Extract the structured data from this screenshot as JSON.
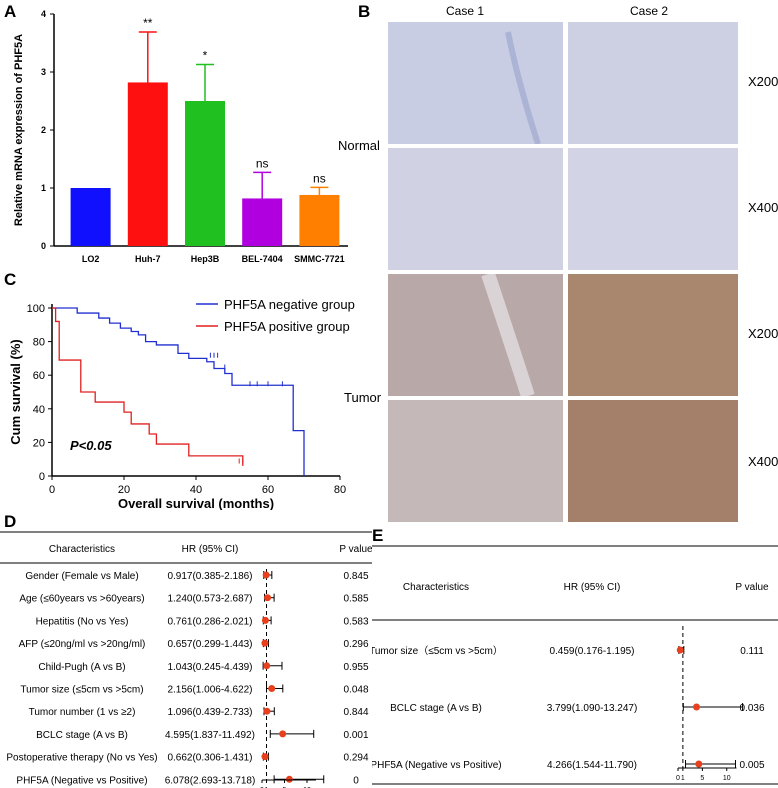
{
  "panels": {
    "a": "A",
    "b": "B",
    "c": "C",
    "d": "D",
    "e": "E"
  },
  "panel_a": {
    "chart_data": {
      "type": "bar",
      "categories": [
        "LO2",
        "Huh-7",
        "Hep3B",
        "BEL-7404",
        "SMMC-7721"
      ],
      "values": [
        1.0,
        2.82,
        2.5,
        0.82,
        0.88
      ],
      "errors": [
        0,
        0.87,
        0.63,
        0.45,
        0.13
      ],
      "colors": [
        "#1010ff",
        "#ff1010",
        "#20c020",
        "#b000e0",
        "#ff8000"
      ],
      "significance": [
        "",
        "**",
        "*",
        "ns",
        "ns"
      ],
      "ylabel": "Relative  mRNA expression of PHF5A",
      "ylim": [
        0,
        4
      ],
      "yticks": [
        "0",
        "1",
        "2",
        "3",
        "4"
      ]
    }
  },
  "panel_b": {
    "cases": [
      "Case 1",
      "Case 2"
    ],
    "rows": [
      "Normal",
      "Tumor"
    ],
    "mags": [
      "X200",
      "X400",
      "X200",
      "X400"
    ]
  },
  "panel_c": {
    "chart_data": {
      "type": "line",
      "series": [
        {
          "name": "PHF5A negative group",
          "color": "#2030d0",
          "x": [
            0,
            5,
            7,
            13,
            16,
            19,
            22,
            24,
            26,
            29,
            31,
            35,
            38,
            43,
            45,
            48,
            50,
            52,
            67,
            70
          ],
          "y": [
            100,
            100,
            97,
            94,
            91,
            88,
            86,
            84,
            80,
            78,
            78,
            73,
            70,
            68,
            64,
            61,
            54,
            54,
            27,
            0
          ],
          "censored_x": [
            44,
            45,
            46,
            48,
            55,
            57,
            60,
            64
          ],
          "censored_y": [
            71,
            71,
            71,
            64,
            54,
            54,
            54,
            54
          ]
        },
        {
          "name": "PHF5A positive group",
          "color": "#e02020",
          "x": [
            0,
            1,
            2,
            7,
            8,
            12,
            19,
            20,
            22,
            27,
            29,
            38,
            42,
            51,
            53
          ],
          "y": [
            100,
            92,
            69,
            69,
            50,
            44,
            44,
            38,
            31,
            25,
            19,
            12,
            12,
            12,
            6
          ],
          "censored_x": [
            52,
            53
          ],
          "censored_y": [
            8,
            8
          ]
        }
      ],
      "xlabel": "Overall survival (months)",
      "ylabel": "Cum survival (%)",
      "xticks": [
        "0",
        "20",
        "40",
        "60",
        "80"
      ],
      "yticks": [
        "0",
        "20",
        "40",
        "60",
        "80",
        "100"
      ],
      "xlim": [
        0,
        80
      ],
      "ylim": [
        0,
        100
      ],
      "annotation": "P<0.05"
    }
  },
  "panel_d": {
    "headers": [
      "Characteristics",
      "HR (95% CI)",
      "P value"
    ],
    "chart_data": {
      "type": "forest",
      "rows": [
        {
          "label": "Gender (Female vs Male)",
          "hr_text": "0.917(0.385-2.186)",
          "p": "0.845",
          "hr": 0.917,
          "lo": 0.385,
          "hi": 2.186
        },
        {
          "label": "Age (≤60years vs >60years)",
          "hr_text": "1.240(0.573-2.687)",
          "p": "0.585",
          "hr": 1.24,
          "lo": 0.573,
          "hi": 2.687
        },
        {
          "label": "Hepatitis (No vs Yes)",
          "hr_text": "0.761(0.286-2.021)",
          "p": "0.583",
          "hr": 0.761,
          "lo": 0.286,
          "hi": 2.021
        },
        {
          "label": "AFP (≤20ng/ml vs >20ng/ml)",
          "hr_text": "0.657(0.299-1.443)",
          "p": "0.296",
          "hr": 0.657,
          "lo": 0.299,
          "hi": 1.443
        },
        {
          "label": "Child-Pugh (A vs B)",
          "hr_text": "1.043(0.245-4.439)",
          "p": "0.955",
          "hr": 1.043,
          "lo": 0.245,
          "hi": 4.439
        },
        {
          "label": "Tumor size  (≤5cm vs >5cm)",
          "hr_text": "2.156(1.006-4.622)",
          "p": "0.048",
          "hr": 2.156,
          "lo": 1.006,
          "hi": 4.622
        },
        {
          "label": "Tumor number (1 vs ≥2)",
          "hr_text": "1.096(0.439-2.733)",
          "p": "0.844",
          "hr": 1.096,
          "lo": 0.439,
          "hi": 2.733
        },
        {
          "label": "BCLC stage (A vs B)",
          "hr_text": "4.595(1.837-11.492)",
          "p": "0.001",
          "hr": 4.595,
          "lo": 1.837,
          "hi": 11.492
        },
        {
          "label": "Postoperative therapy (No vs Yes)",
          "hr_text": "0.662(0.306-1.431)",
          "p": "0.294",
          "hr": 0.662,
          "lo": 0.306,
          "hi": 1.431
        },
        {
          "label": "PHF5A (Negative vs Positive)",
          "hr_text": "6.078(2.693-13.718)",
          "p": "0",
          "hr": 6.078,
          "lo": 2.693,
          "hi": 13.718
        }
      ],
      "xticks": [
        "0",
        "1",
        "5",
        "10"
      ],
      "xlim": [
        0,
        16
      ]
    }
  },
  "panel_e": {
    "headers": [
      "Characteristics",
      "HR (95% CI)",
      "P value"
    ],
    "chart_data": {
      "type": "forest",
      "rows": [
        {
          "label": "Tumor size（≤5cm vs >5cm）",
          "hr_text": "0.459(0.176-1.195)",
          "p": "0.111",
          "hr": 0.459,
          "lo": 0.176,
          "hi": 1.195
        },
        {
          "label": "BCLC stage (A vs B)",
          "hr_text": "3.799(1.090-13.247)",
          "p": "0.036",
          "hr": 3.799,
          "lo": 1.09,
          "hi": 13.247
        },
        {
          "label": "PHF5A (Negative vs Positive)",
          "hr_text": "4.266(1.544-11.790)",
          "p": "0.005",
          "hr": 4.266,
          "lo": 1.544,
          "hi": 11.79
        }
      ],
      "xticks": [
        "0",
        "1",
        "5",
        "10"
      ],
      "xlim": [
        0,
        16
      ]
    }
  }
}
